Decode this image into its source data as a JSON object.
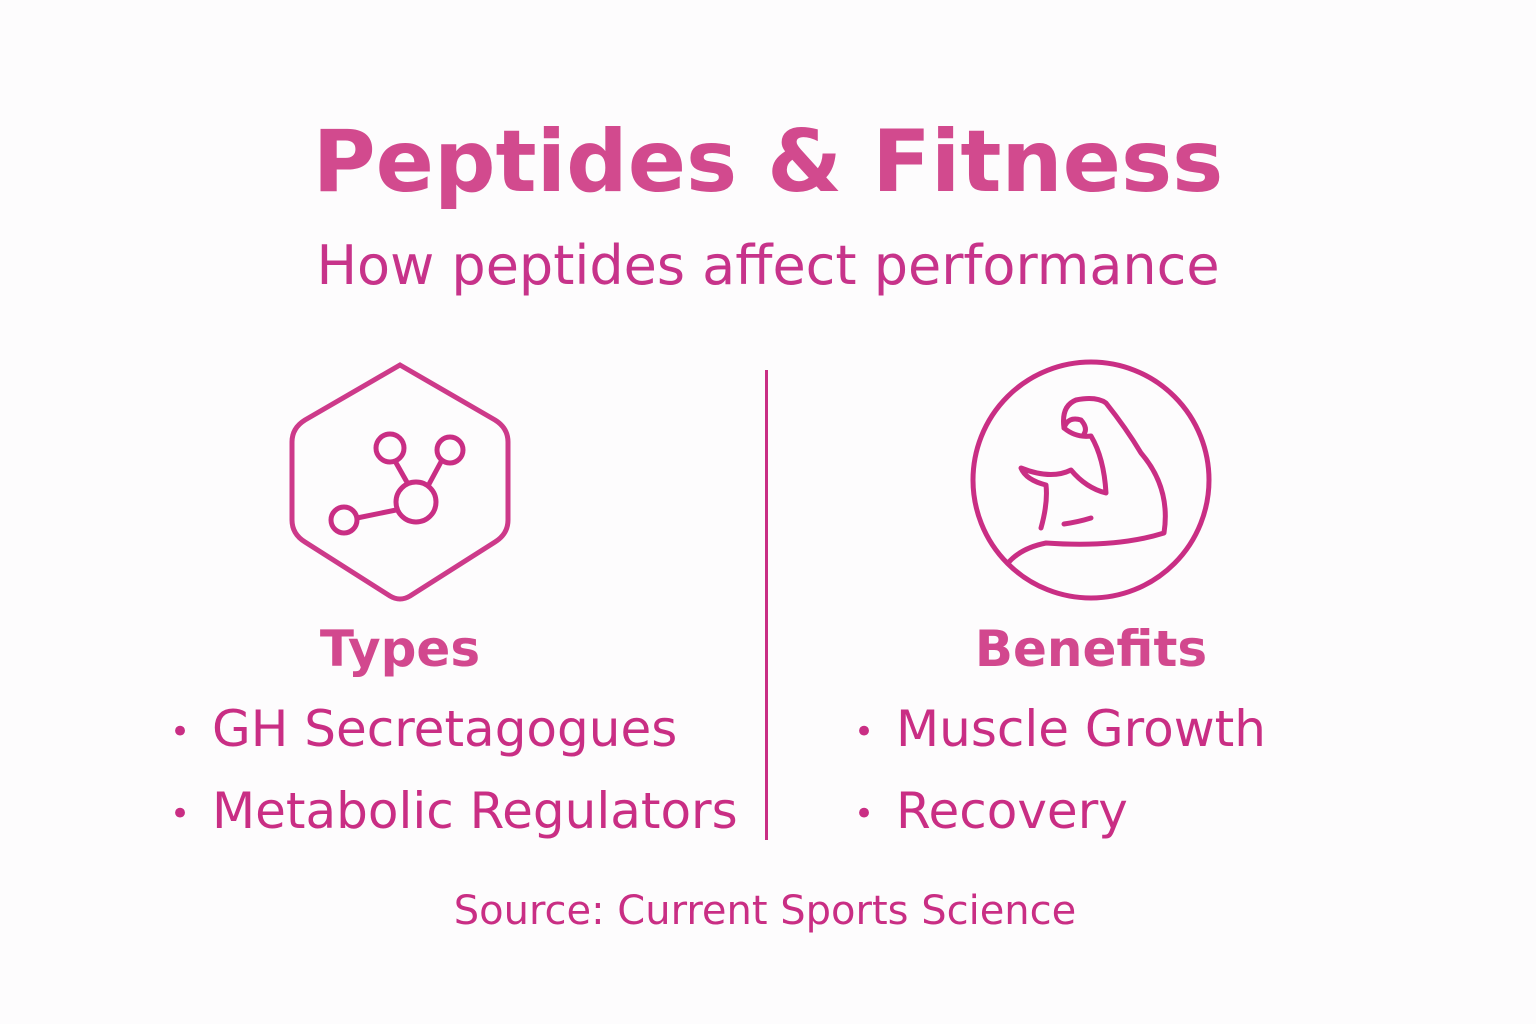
{
  "header": {
    "title": "Peptides & Fitness",
    "subtitle": "How peptides affect performance"
  },
  "columns": [
    {
      "heading": "Types",
      "items": [
        "GH Secretagogues",
        "Metabolic Regulators"
      ]
    },
    {
      "heading": "Benefits",
      "items": [
        "Muscle Growth",
        "Recovery"
      ]
    }
  ],
  "footer": {
    "source": "Source: Current Sports Science"
  }
}
